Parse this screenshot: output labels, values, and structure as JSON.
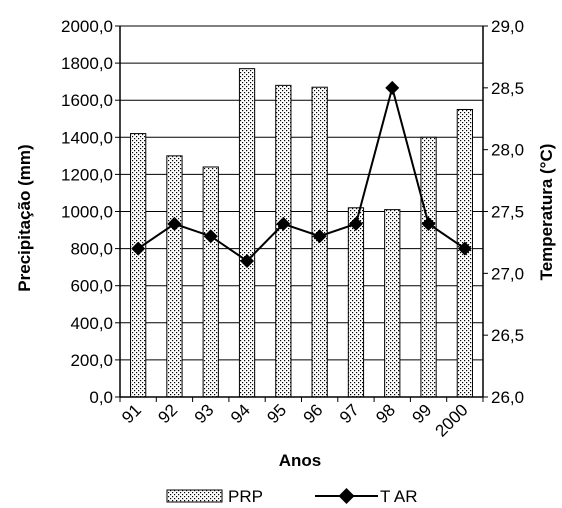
{
  "chart_data": {
    "type": "bar",
    "categories": [
      "91",
      "92",
      "93",
      "94",
      "95",
      "96",
      "97",
      "98",
      "99",
      "2000"
    ],
    "xlabel": "Anos",
    "series": [
      {
        "name": "PRP",
        "type": "bar",
        "axis": "left",
        "values": [
          1420,
          1300,
          1240,
          1770,
          1680,
          1670,
          1020,
          1010,
          1400,
          1550
        ]
      },
      {
        "name": "T AR",
        "type": "line",
        "axis": "right",
        "values": [
          27.2,
          27.4,
          27.3,
          27.1,
          27.4,
          27.3,
          27.4,
          28.5,
          27.4,
          27.2
        ]
      }
    ],
    "y_left": {
      "label": "Precipitação (mm)",
      "range": [
        0,
        2000
      ],
      "ticks": [
        "0,0",
        "200,0",
        "400,0",
        "600,0",
        "800,0",
        "1000,0",
        "1200,0",
        "1400,0",
        "1600,0",
        "1800,0",
        "2000,0"
      ]
    },
    "y_right": {
      "label": "Temperatura (°C)",
      "range": [
        26.0,
        29.0
      ],
      "ticks": [
        "26,0",
        "26,5",
        "27,0",
        "27,5",
        "28,0",
        "28,5",
        "29,0"
      ]
    },
    "grid": true,
    "legend_position": "bottom"
  }
}
